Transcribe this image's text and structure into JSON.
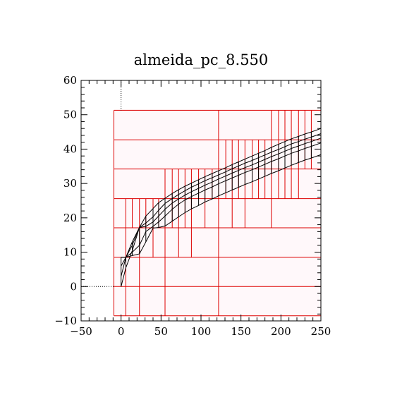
{
  "chart_data": {
    "type": "mesh",
    "title": "almeida_pc_8.550",
    "xlabel": "",
    "ylabel": "",
    "xlim": [
      -50,
      250
    ],
    "ylim": [
      -10,
      60
    ],
    "xticks": [
      -50,
      0,
      50,
      100,
      150,
      200,
      250
    ],
    "yticks": [
      -10,
      0,
      10,
      20,
      30,
      40,
      50,
      60
    ],
    "xtick_labels": [
      "−50",
      "0",
      "50",
      "100",
      "150",
      "200",
      "250"
    ],
    "ytick_labels": [
      "−10",
      "0",
      "10",
      "20",
      "30",
      "40",
      "50",
      "60"
    ],
    "colors": {
      "grid": "#dd0000",
      "fill": "#fff8fa",
      "mesh": "#000000",
      "frame": "#000000"
    },
    "refinement_grid": {
      "x_range": [
        -9,
        250
      ],
      "y_range": [
        -8.5,
        51.3
      ],
      "row_bands": [
        {
          "y": [
            -8.5,
            0.0
          ],
          "xs": [
            -9,
            6,
            23,
            55,
            122,
            250
          ]
        },
        {
          "y": [
            0.0,
            8.5
          ],
          "xs": [
            -9,
            6,
            23,
            55,
            122,
            250
          ]
        },
        {
          "y": [
            8.5,
            17.1
          ],
          "xs": [
            -9,
            6,
            23,
            40,
            55,
            72,
            88,
            122,
            250
          ]
        },
        {
          "y": [
            17.1,
            25.6
          ],
          "xs": [
            -9,
            6,
            14,
            23,
            31,
            40,
            47,
            55,
            64,
            72,
            80,
            88,
            105,
            122,
            139,
            155,
            188,
            250
          ]
        },
        {
          "y": [
            25.6,
            34.2
          ],
          "xs": [
            -9,
            55,
            64,
            72,
            80,
            88,
            97,
            105,
            114,
            122,
            131,
            139,
            147,
            155,
            164,
            172,
            180,
            188,
            197,
            205,
            213,
            222,
            250
          ]
        },
        {
          "y": [
            34.2,
            42.7
          ],
          "xs": [
            -9,
            122,
            131,
            139,
            147,
            155,
            164,
            172,
            180,
            188,
            197,
            205,
            213,
            222,
            230,
            238,
            250
          ]
        },
        {
          "y": [
            42.7,
            51.3
          ],
          "xs": [
            -9,
            122,
            188,
            197,
            205,
            213,
            222,
            230,
            238,
            250
          ]
        }
      ]
    },
    "mesh": {
      "x": [
        0,
        6,
        14,
        23,
        31,
        40,
        47,
        55,
        64,
        72,
        80,
        88,
        97,
        105,
        114,
        122,
        131,
        139,
        147,
        155,
        164,
        172,
        180,
        188,
        197,
        205,
        213,
        222,
        230,
        238,
        250
      ],
      "lines": [
        [
          0.0,
          5.5,
          10.4,
          17.2,
          20.5,
          22.7,
          24.4,
          25.7,
          27.1,
          28.2,
          29.2,
          30.1,
          31.1,
          32.0,
          32.9,
          33.7,
          34.6,
          35.5,
          36.3,
          37.1,
          38.0,
          38.8,
          39.6,
          40.5,
          41.4,
          42.2,
          43.0,
          43.7,
          44.4,
          45.0,
          46.0
        ],
        [
          3.0,
          8.5,
          13.0,
          17.2,
          18.5,
          20.3,
          22.2,
          24.2,
          25.6,
          26.8,
          27.9,
          28.9,
          29.9,
          30.8,
          31.7,
          32.5,
          33.4,
          34.3,
          35.1,
          35.9,
          36.7,
          37.5,
          38.3,
          39.1,
          39.9,
          40.7,
          41.5,
          42.2,
          42.9,
          43.5,
          44.5
        ],
        [
          6.0,
          8.5,
          12.0,
          17.2,
          17.5,
          18.8,
          20.5,
          22.5,
          24.3,
          25.5,
          26.6,
          27.6,
          28.6,
          29.5,
          30.4,
          31.3,
          32.2,
          33.0,
          33.8,
          34.6,
          35.4,
          36.2,
          37.0,
          37.8,
          38.6,
          39.4,
          40.2,
          40.9,
          41.6,
          42.2,
          43.2
        ],
        [
          8.5,
          8.5,
          10.0,
          12.0,
          16.0,
          17.5,
          18.8,
          20.5,
          22.5,
          24.0,
          25.2,
          26.2,
          27.2,
          28.1,
          29.0,
          29.9,
          30.8,
          31.6,
          32.4,
          33.2,
          34.0,
          34.8,
          35.6,
          36.4,
          37.2,
          38.0,
          38.8,
          39.5,
          40.2,
          40.8,
          41.8
        ],
        [
          8.5,
          8.5,
          9.0,
          9.5,
          13.0,
          17.0,
          17.2,
          17.6,
          19.0,
          20.3,
          21.5,
          22.6,
          23.6,
          24.6,
          25.5,
          26.4,
          27.3,
          28.1,
          28.9,
          29.7,
          30.5,
          31.3,
          32.1,
          32.9,
          33.7,
          34.5,
          35.3,
          36.1,
          36.8,
          37.4,
          38.4
        ]
      ]
    }
  }
}
